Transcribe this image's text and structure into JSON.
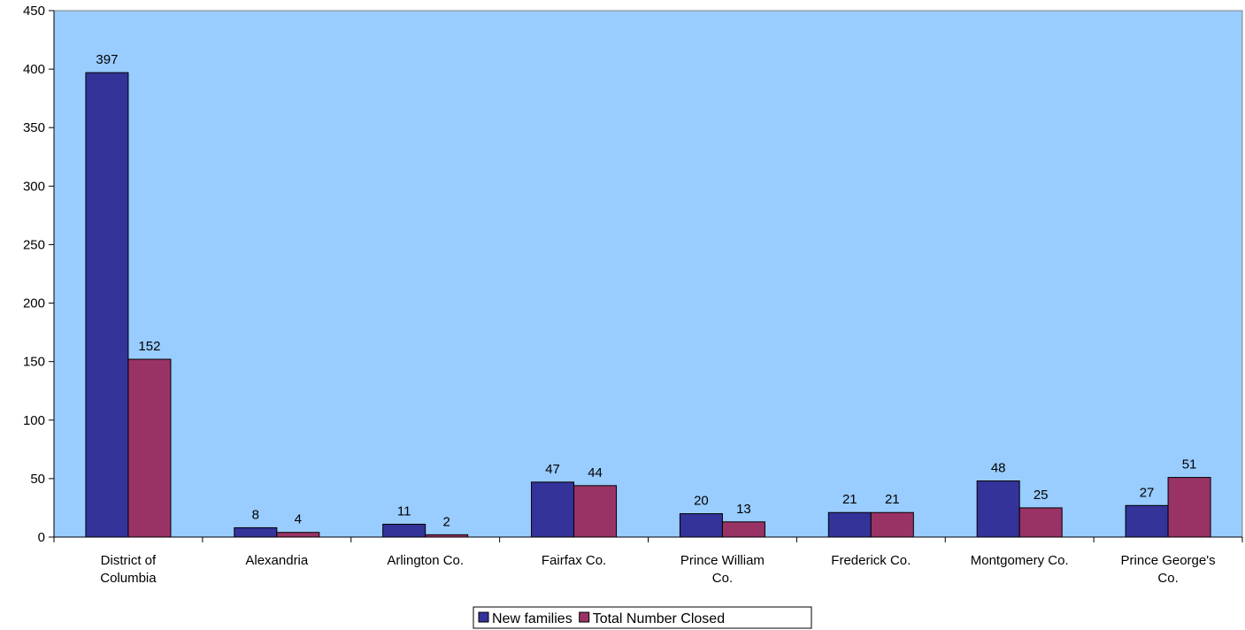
{
  "chart_data": {
    "type": "bar",
    "title": "",
    "xlabel": "",
    "ylabel": "",
    "ylim": [
      0,
      450
    ],
    "yticks": [
      0,
      50,
      100,
      150,
      200,
      250,
      300,
      350,
      400,
      450
    ],
    "categories": [
      [
        "District of",
        "Columbia"
      ],
      [
        "Alexandria"
      ],
      [
        "Arlington Co."
      ],
      [
        "Fairfax Co."
      ],
      [
        "Prince William",
        "Co."
      ],
      [
        "Frederick Co."
      ],
      [
        "Montgomery Co."
      ],
      [
        "Prince George's",
        "Co."
      ]
    ],
    "series": [
      {
        "name": "New families",
        "color": "#333399",
        "values": [
          397,
          8,
          11,
          47,
          20,
          21,
          48,
          27
        ]
      },
      {
        "name": "Total Number Closed",
        "color": "#993366",
        "values": [
          152,
          4,
          2,
          44,
          13,
          21,
          25,
          51
        ]
      }
    ],
    "plot_background": "#99ccff",
    "grid": false,
    "legend_position": "bottom-center"
  }
}
